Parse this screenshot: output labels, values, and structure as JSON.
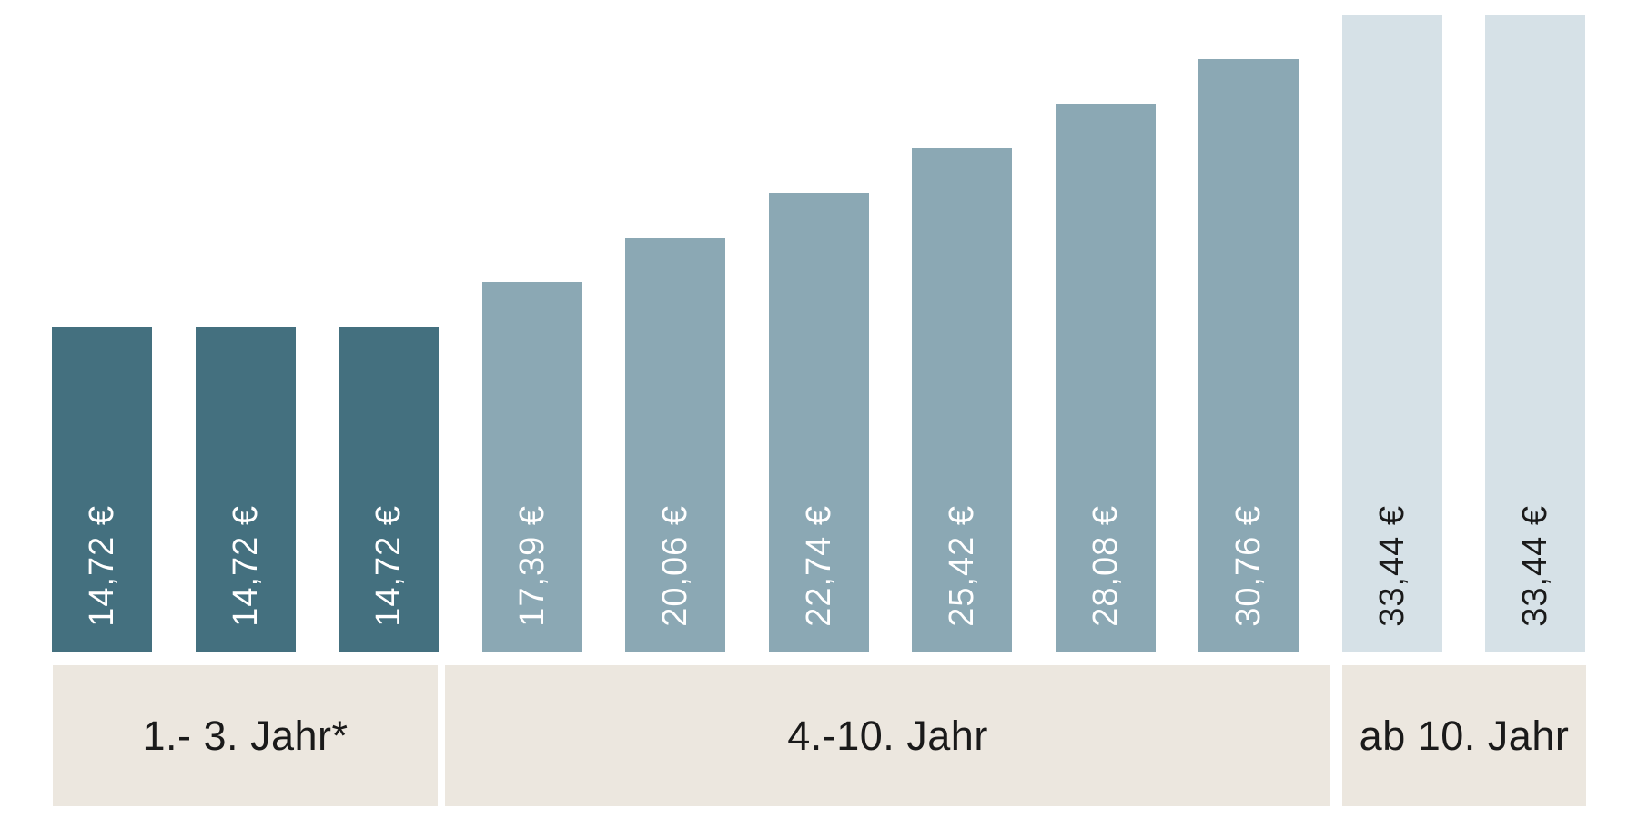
{
  "chart_data": {
    "type": "bar",
    "title": "",
    "xlabel": "",
    "ylabel": "",
    "unit": "EUR",
    "legend": false,
    "grid": false,
    "orientation": "vertical",
    "value_label_rotation": -90,
    "categories": [
      "1.- 3. Jahr*",
      "4.-10. Jahr",
      "ab 10. Jahr"
    ],
    "groups": [
      {
        "label": "1.- 3. Jahr*",
        "bar_count": 3
      },
      {
        "label": "4.-10. Jahr",
        "bar_count": 6
      },
      {
        "label": "ab 10. Jahr",
        "bar_count": 2
      }
    ],
    "bars": [
      {
        "value": 14.72,
        "label": "14,72 €",
        "group": 0
      },
      {
        "value": 14.72,
        "label": "14,72 €",
        "group": 0
      },
      {
        "value": 14.72,
        "label": "14,72 €",
        "group": 0
      },
      {
        "value": 17.39,
        "label": "17,39 €",
        "group": 1
      },
      {
        "value": 20.06,
        "label": "20,06 €",
        "group": 1
      },
      {
        "value": 22.74,
        "label": "22,74 €",
        "group": 1
      },
      {
        "value": 25.42,
        "label": "25,42 €",
        "group": 1
      },
      {
        "value": 28.08,
        "label": "28,08 €",
        "group": 1
      },
      {
        "value": 30.76,
        "label": "30,76 €",
        "group": 1
      },
      {
        "value": 33.44,
        "label": "33,44 €",
        "group": 2
      },
      {
        "value": 33.44,
        "label": "33,44 €",
        "group": 2
      }
    ],
    "footnote_marker": "*",
    "colors": {
      "group_bar_colors": [
        "#44707F",
        "#8BA8B4",
        "#D6E1E7"
      ],
      "group_label_colors": [
        "#FFFFFF",
        "#FFFFFF",
        "#1A1A1A"
      ],
      "band_background": "#ECE7DF",
      "band_text": "#1A1A1A",
      "page_background": "#FFFFFF"
    }
  }
}
